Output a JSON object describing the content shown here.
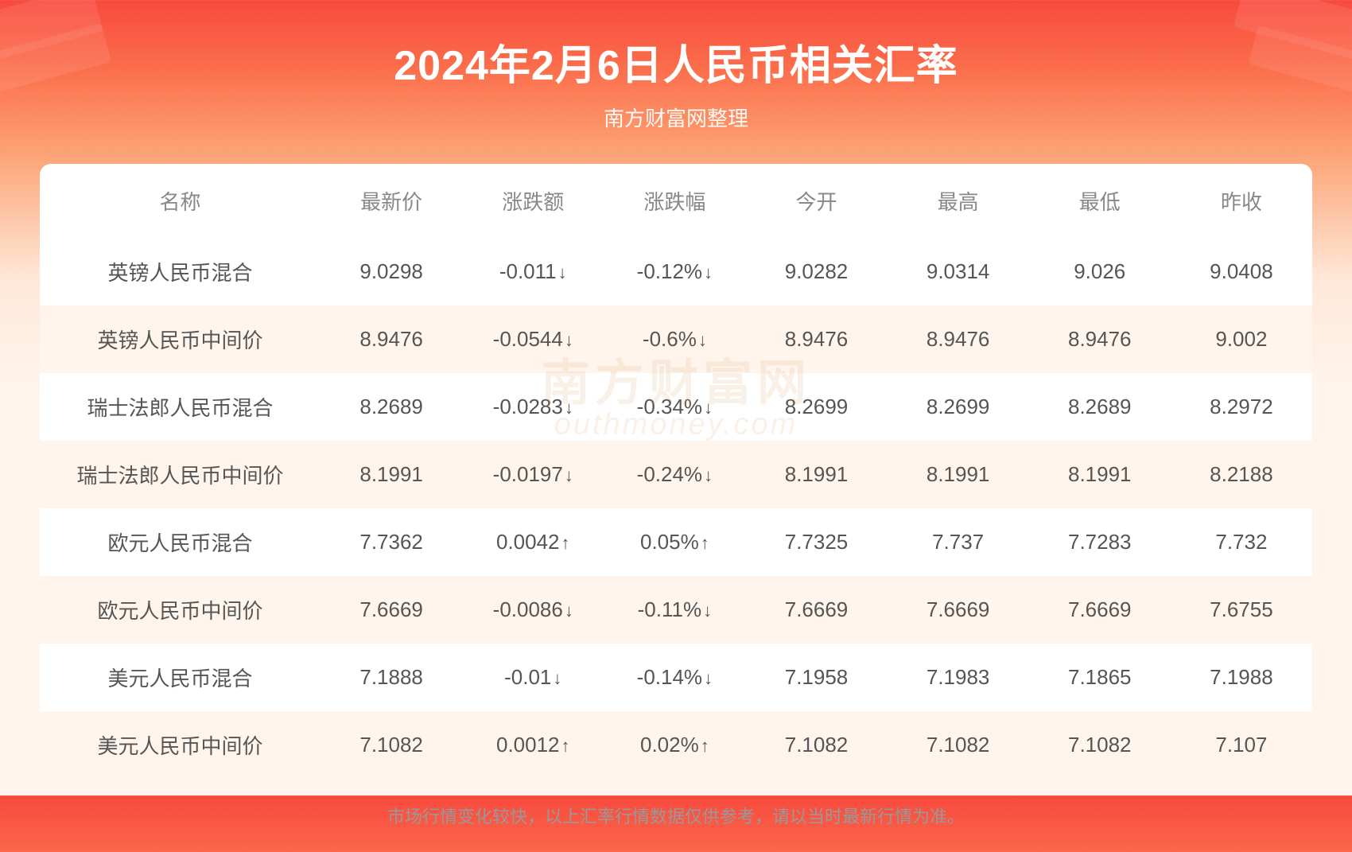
{
  "title": "2024年2月6日人民币相关汇率",
  "subtitle": "南方财富网整理",
  "footnote": "市场行情变化较快，以上汇率行情数据仅供参考，请以当时最新行情为准。",
  "watermark_cn": "南方财富网",
  "watermark_en": "outhmoney.com",
  "colors": {
    "gradient_top": "#f84a3f",
    "gradient_mid": "#fd9d6e",
    "gradient_bottom": "#fff5ed",
    "header_bg": "#ffffff",
    "row_odd": "#ffffff",
    "row_even": "#fff5ed",
    "header_text": "#888888",
    "neutral_text": "#555555",
    "down_color": "#1fa84a",
    "up_color": "#e63c2e",
    "footnote_color": "#999999",
    "watermark_color": "#d08840"
  },
  "typography": {
    "title_fontsize": 52,
    "subtitle_fontsize": 26,
    "header_fontsize": 26,
    "cell_fontsize": 26,
    "footnote_fontsize": 22,
    "font_family": "Microsoft YaHei"
  },
  "table": {
    "type": "table",
    "columns": [
      "名称",
      "最新价",
      "涨跌额",
      "涨跌幅",
      "今开",
      "最高",
      "最低",
      "昨收"
    ],
    "column_widths_pct": [
      22,
      11.1,
      11.1,
      11.1,
      11.1,
      11.1,
      11.1,
      11.1
    ],
    "alignment": "center",
    "rows": [
      {
        "name": "英镑人民币混合",
        "last": "9.0298",
        "chg": "-0.011",
        "pct": "-0.12%",
        "open": "9.0282",
        "high": "9.0314",
        "low": "9.026",
        "prev": "9.0408",
        "dir": "down"
      },
      {
        "name": "英镑人民币中间价",
        "last": "8.9476",
        "chg": "-0.0544",
        "pct": "-0.6%",
        "open": "8.9476",
        "high": "8.9476",
        "low": "8.9476",
        "prev": "9.002",
        "dir": "down"
      },
      {
        "name": "瑞士法郎人民币混合",
        "last": "8.2689",
        "chg": "-0.0283",
        "pct": "-0.34%",
        "open": "8.2699",
        "high": "8.2699",
        "low": "8.2689",
        "prev": "8.2972",
        "dir": "down"
      },
      {
        "name": "瑞士法郎人民币中间价",
        "last": "8.1991",
        "chg": "-0.0197",
        "pct": "-0.24%",
        "open": "8.1991",
        "high": "8.1991",
        "low": "8.1991",
        "prev": "8.2188",
        "dir": "down"
      },
      {
        "name": "欧元人民币混合",
        "last": "7.7362",
        "chg": "0.0042",
        "pct": "0.05%",
        "open": "7.7325",
        "high": "7.737",
        "low": "7.7283",
        "prev": "7.732",
        "dir": "up"
      },
      {
        "name": "欧元人民币中间价",
        "last": "7.6669",
        "chg": "-0.0086",
        "pct": "-0.11%",
        "open": "7.6669",
        "high": "7.6669",
        "low": "7.6669",
        "prev": "7.6755",
        "dir": "down"
      },
      {
        "name": "美元人民币混合",
        "last": "7.1888",
        "chg": "-0.01",
        "pct": "-0.14%",
        "open": "7.1958",
        "high": "7.1983",
        "low": "7.1865",
        "prev": "7.1988",
        "dir": "down"
      },
      {
        "name": "美元人民币中间价",
        "last": "7.1082",
        "chg": "0.0012",
        "pct": "0.02%",
        "open": "7.1082",
        "high": "7.1082",
        "low": "7.1082",
        "prev": "7.107",
        "dir": "up"
      }
    ]
  }
}
